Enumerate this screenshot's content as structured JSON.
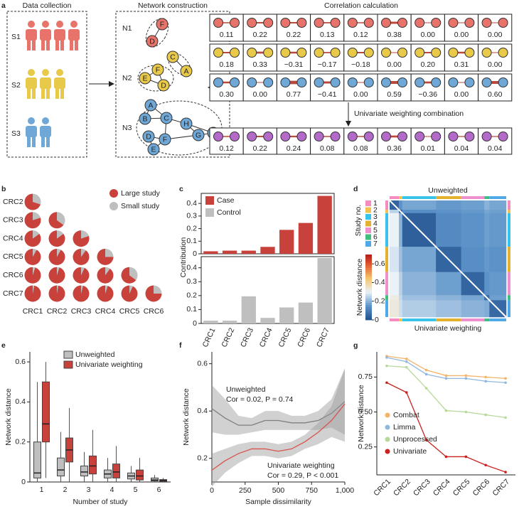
{
  "panel_labels": [
    "a",
    "b",
    "c",
    "d",
    "e",
    "f",
    "g"
  ],
  "diagram": {
    "data_collection": {
      "title": "Data collection",
      "samples": [
        "S1",
        "S2",
        "S3"
      ]
    },
    "network_construction": {
      "title": "Network construction",
      "networks": [
        {
          "name": "N1",
          "nodes": [
            "F",
            "D"
          ]
        },
        {
          "name": "N2",
          "nodes": [
            "C",
            "A",
            "F",
            "E",
            "D"
          ]
        },
        {
          "name": "N3",
          "nodes": [
            "A",
            "B",
            "C",
            "H",
            "G",
            "I",
            "D",
            "F",
            "E"
          ]
        }
      ]
    },
    "correlation": {
      "title": "Correlation calculation",
      "rows": [
        [
          "0.11",
          "0.22",
          "0.22",
          "0.13",
          "0.12",
          "0.38",
          "0.00",
          "0.00",
          "0.00"
        ],
        [
          "0.18",
          "0.33",
          "−0.31",
          "−0.17",
          "−0.18",
          "0.00",
          "0.20",
          "0.31",
          "0.00"
        ],
        [
          "0.30",
          "0.00",
          "0.77",
          "−0.41",
          "0.00",
          "0.59",
          "−0.36",
          "0.00",
          "0.60"
        ]
      ]
    },
    "combination": {
      "title": "Univariate weighting combination",
      "values": [
        "0.12",
        "0.22",
        "0.24",
        "0.08",
        "0.08",
        "0.36",
        "0.01",
        "0.04",
        "0.04"
      ]
    }
  },
  "chart_data": [
    {
      "type": "pie",
      "rows": [
        "CRC2",
        "CRC3",
        "CRC4",
        "CRC5",
        "CRC6",
        "CRC7"
      ],
      "columns": [
        "CRC1",
        "CRC2",
        "CRC3",
        "CRC4",
        "CRC5",
        "CRC6"
      ],
      "values": [
        [
          70
        ],
        [
          80,
          65
        ],
        [
          85,
          85,
          80
        ],
        [
          92,
          92,
          90,
          75
        ],
        [
          95,
          95,
          93,
          90,
          65
        ],
        [
          97,
          97,
          96,
          95,
          93,
          75
        ]
      ],
      "legend": [
        {
          "name": "Large study",
          "color": "#c8413a"
        },
        {
          "name": "Small study",
          "color": "#bfbfbf"
        }
      ]
    },
    {
      "type": "bar",
      "ylabel": "Contribution",
      "categories": [
        "CRC1",
        "CRC2",
        "CRC3",
        "CRC4",
        "CRC5",
        "CRC6",
        "CRC7"
      ],
      "ylim": [
        0,
        0.48
      ],
      "yticks": [
        0,
        0.1,
        0.2,
        0.3,
        0.4
      ],
      "series": [
        {
          "name": "Case",
          "color": "#c8413a",
          "values": [
            0.02,
            0.025,
            0.025,
            0.055,
            0.19,
            0.245,
            0.46
          ]
        },
        {
          "name": "Control",
          "color": "#bfbfbf",
          "values": [
            0.02,
            0.02,
            0.195,
            0.04,
            0.115,
            0.15,
            0.47
          ]
        }
      ]
    },
    {
      "type": "heatmap",
      "upper_label": "Unweighted",
      "lower_label": "Univariate weighting",
      "legend_title": "Study no.",
      "studies": [
        "1",
        "2",
        "3",
        "4",
        "5",
        "6",
        "7"
      ],
      "study_colors": [
        "#f48cbf",
        "#f2c14e",
        "#38c3ea",
        "#e2b22f",
        "#ee8fd0",
        "#3fbf7f",
        "#4fa8e8"
      ],
      "study_sizes": [
        22,
        8,
        80,
        60,
        55,
        12,
        40
      ],
      "values": [
        [
          0.05,
          0.15,
          0.18,
          0.16,
          0.17,
          0.2,
          0.18
        ],
        [
          0.25,
          0.05,
          0.14,
          0.15,
          0.16,
          0.18,
          0.17
        ],
        [
          0.3,
          0.2,
          0.04,
          0.13,
          0.15,
          0.17,
          0.16
        ],
        [
          0.28,
          0.22,
          0.18,
          0.05,
          0.14,
          0.16,
          0.15
        ],
        [
          0.3,
          0.25,
          0.2,
          0.17,
          0.05,
          0.15,
          0.16
        ],
        [
          0.32,
          0.26,
          0.22,
          0.2,
          0.18,
          0.06,
          0.17
        ],
        [
          0.33,
          0.27,
          0.24,
          0.22,
          0.2,
          0.19,
          0.06
        ]
      ],
      "colorbar_label": "Network distance",
      "clim": [
        0,
        0.7
      ],
      "cticks": [
        0,
        0.2,
        0.4,
        0.6
      ]
    },
    {
      "type": "box",
      "xlabel": "Number of study",
      "ylabel": "Network distance",
      "categories": [
        "1",
        "2",
        "3",
        "4",
        "5",
        "6"
      ],
      "ylim": [
        0,
        0.65
      ],
      "yticks": [
        0,
        0.2,
        0.4,
        0.6
      ],
      "series": [
        {
          "name": "Unweighted",
          "color": "#bfbfbf",
          "values": [
            [
              0,
              0.02,
              0.045,
              0.2,
              0.5
            ],
            [
              0,
              0.03,
              0.06,
              0.12,
              0.25
            ],
            [
              0,
              0.03,
              0.05,
              0.08,
              0.15
            ],
            [
              0,
              0.02,
              0.04,
              0.06,
              0.12
            ],
            [
              0,
              0.015,
              0.03,
              0.045,
              0.08
            ],
            [
              0,
              0.005,
              0.01,
              0.02,
              0.035
            ]
          ]
        },
        {
          "name": "Univariate weighting",
          "color": "#c8413a",
          "values": [
            [
              0.02,
              0.2,
              0.29,
              0.5,
              0.6
            ],
            [
              0,
              0.1,
              0.16,
              0.22,
              0.37
            ],
            [
              0,
              0.04,
              0.08,
              0.13,
              0.26
            ],
            [
              0,
              0.02,
              0.05,
              0.09,
              0.18
            ],
            [
              0,
              0.01,
              0.03,
              0.06,
              0.12
            ],
            [
              0,
              0.003,
              0.008,
              0.012,
              0.02
            ]
          ]
        }
      ]
    },
    {
      "type": "line",
      "xlabel": "Sample dissimilarity",
      "ylabel": "Network distance",
      "x": [
        0,
        100,
        200,
        300,
        400,
        500,
        600,
        700,
        800,
        900,
        1000
      ],
      "xlim": [
        0,
        1000
      ],
      "xticks": [
        0,
        250,
        500,
        750,
        {
          "value": 1000,
          "label": "1,000"
        }
      ],
      "ylim": [
        0.1,
        0.65
      ],
      "yticks": [
        0.2,
        0.4,
        0.6
      ],
      "series": [
        {
          "name": "Unweighted",
          "color": "#7f7f7f",
          "values": [
            0.41,
            0.37,
            0.34,
            0.34,
            0.36,
            0.36,
            0.35,
            0.35,
            0.36,
            0.39,
            0.44
          ],
          "lower": [
            0.31,
            0.3,
            0.3,
            0.31,
            0.32,
            0.32,
            0.32,
            0.32,
            0.32,
            0.33,
            0.3
          ],
          "upper": [
            0.51,
            0.45,
            0.38,
            0.37,
            0.4,
            0.4,
            0.38,
            0.38,
            0.4,
            0.45,
            0.58
          ]
        },
        {
          "name": "Univariate weighting",
          "color": "#d9534f",
          "values": [
            0.15,
            0.19,
            0.22,
            0.24,
            0.24,
            0.23,
            0.24,
            0.27,
            0.31,
            0.36,
            0.43
          ],
          "lower": [
            0.08,
            0.14,
            0.18,
            0.21,
            0.21,
            0.2,
            0.21,
            0.24,
            0.26,
            0.29,
            0.27
          ],
          "upper": [
            0.22,
            0.24,
            0.26,
            0.27,
            0.27,
            0.26,
            0.27,
            0.3,
            0.35,
            0.42,
            0.58
          ]
        }
      ],
      "annotations": [
        "Unweighted",
        "Cor = 0.02, P = 0.74",
        "Univariate weighting",
        "Cor = 0.29, P < 0.001"
      ]
    },
    {
      "type": "line",
      "ylabel": "Network distance",
      "categories": [
        "CRC1",
        "CRC2",
        "CRC3",
        "CRC4",
        "CRC5",
        "CRC6",
        "CRC7"
      ],
      "ylim": [
        0.05,
        0.93
      ],
      "yticks": [
        0.25,
        {
          "value": 0.5,
          "label": "0.50"
        },
        0.75
      ],
      "series": [
        {
          "name": "Combat",
          "color": "#f4b26b",
          "values": [
            0.9,
            0.88,
            0.8,
            0.76,
            0.76,
            0.75,
            0.74
          ]
        },
        {
          "name": "Limma",
          "color": "#8fb8de",
          "values": [
            0.89,
            0.86,
            0.77,
            0.74,
            0.74,
            0.72,
            0.71
          ]
        },
        {
          "name": "Unprocessed",
          "color": "#b6d99a",
          "values": [
            0.83,
            0.82,
            0.67,
            0.51,
            0.5,
            0.48,
            0.46
          ]
        },
        {
          "name": "Univariate",
          "color": "#c8221f",
          "values": [
            0.71,
            0.64,
            0.3,
            0.18,
            0.18,
            0.12,
            0.07
          ]
        }
      ]
    }
  ]
}
